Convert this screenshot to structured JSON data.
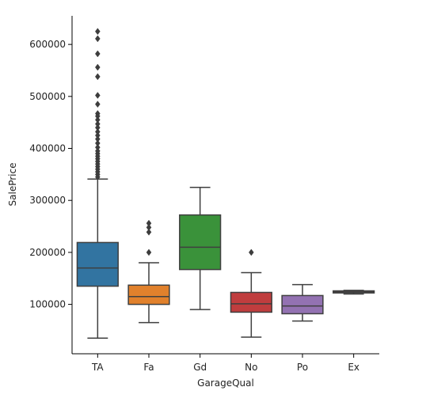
{
  "chart_data": {
    "type": "box",
    "xlabel": "GarageQual",
    "ylabel": "SalePrice",
    "ylim": [
      5000,
      655000
    ],
    "yticks": [
      100000,
      200000,
      300000,
      400000,
      500000,
      600000
    ],
    "ytick_labels": [
      "100000",
      "200000",
      "300000",
      "400000",
      "500000",
      "600000"
    ],
    "grid": false,
    "categories": [
      "TA",
      "Fa",
      "Gd",
      "No",
      "Po",
      "Ex"
    ],
    "boxes": [
      {
        "category": "TA",
        "color": "#3274a1",
        "whisker_low": 35000,
        "q1": 135000,
        "median": 170000,
        "q3": 219000,
        "whisker_high": 341000,
        "outliers": [
          345000,
          350000,
          355000,
          360000,
          365000,
          370000,
          375000,
          380000,
          385000,
          390000,
          395000,
          402000,
          410000,
          418000,
          425000,
          432000,
          440000,
          447000,
          455000,
          462000,
          467000,
          485000,
          502000,
          538000,
          556000,
          582000,
          611000,
          625000
        ]
      },
      {
        "category": "Fa",
        "color": "#e1812c",
        "whisker_low": 65000,
        "q1": 100000,
        "median": 115000,
        "q3": 137000,
        "whisker_high": 180000,
        "outliers": [
          200000,
          239000,
          248000,
          256000
        ]
      },
      {
        "category": "Gd",
        "color": "#3a923a",
        "whisker_low": 90000,
        "q1": 167000,
        "median": 210000,
        "q3": 272000,
        "whisker_high": 325000,
        "outliers": []
      },
      {
        "category": "No",
        "color": "#c03d3e",
        "whisker_low": 37000,
        "q1": 85000,
        "median": 101000,
        "q3": 123000,
        "whisker_high": 161000,
        "outliers": [
          200000
        ]
      },
      {
        "category": "Po",
        "color": "#9372b2",
        "whisker_low": 68000,
        "q1": 82000,
        "median": 97000,
        "q3": 117000,
        "whisker_high": 138000,
        "outliers": []
      },
      {
        "category": "Ex",
        "color": "#845b53",
        "whisker_low": 120000,
        "q1": 122000,
        "median": 124000,
        "q3": 126000,
        "whisker_high": 127000,
        "outliers": []
      }
    ]
  }
}
